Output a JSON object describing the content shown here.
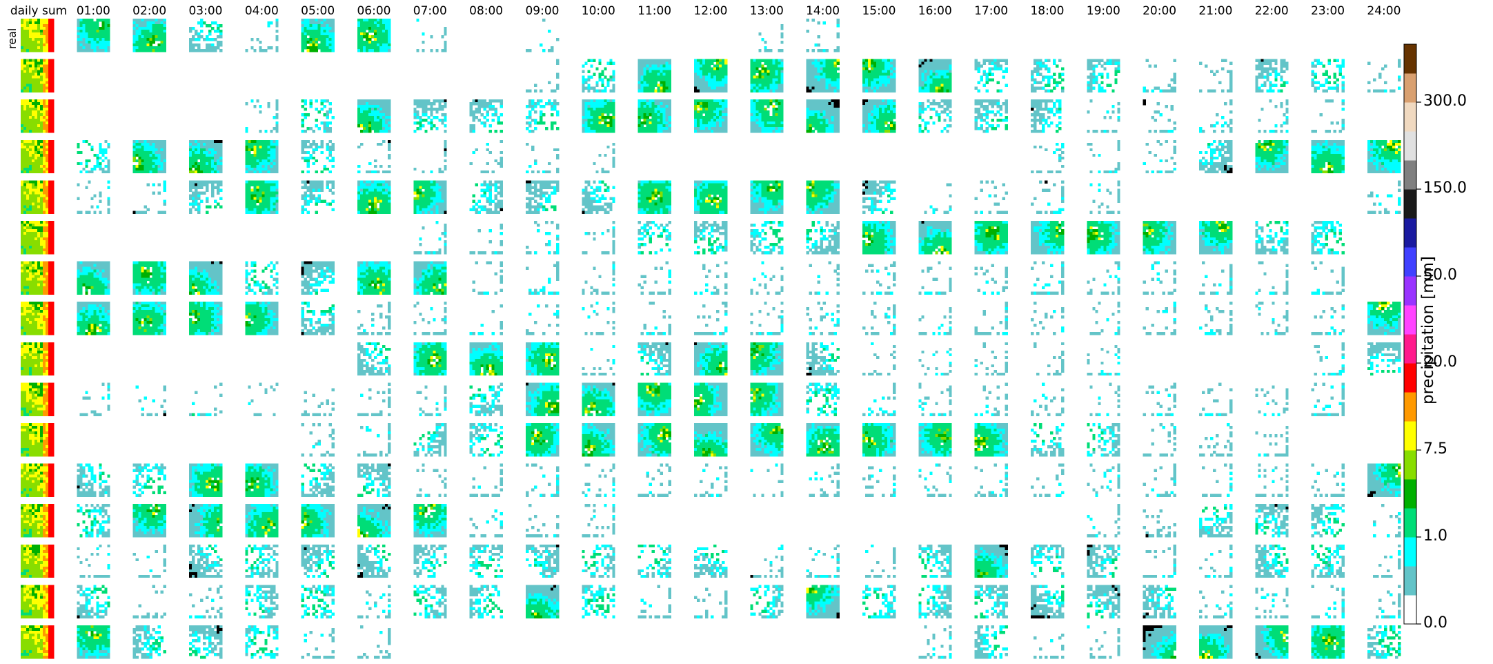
{
  "chart_data": {
    "type": "heatmap",
    "title": "",
    "columns": [
      "daily sum",
      "01:00",
      "02:00",
      "03:00",
      "04:00",
      "05:00",
      "06:00",
      "07:00",
      "08:00",
      "09:00",
      "10:00",
      "11:00",
      "12:00",
      "13:00",
      "14:00",
      "15:00",
      "16:00",
      "17:00",
      "18:00",
      "19:00",
      "20:00",
      "21:00",
      "22:00",
      "23:00",
      "24:00"
    ],
    "row_labels": [
      "real"
    ],
    "n_rows": 16,
    "colorbar": {
      "label": "precipitation [mm]",
      "tick_labels": [
        "0.0",
        "1.0",
        "7.5",
        "20.0",
        "50.0",
        "150.0",
        "300.0"
      ],
      "tick_bins": [
        0,
        3,
        6,
        9,
        12,
        15,
        18
      ],
      "colors": [
        "#ffffff",
        "#63c4c8",
        "#00ffff",
        "#00dd77",
        "#00b000",
        "#88dd00",
        "#ffff00",
        "#ff9900",
        "#ff0000",
        "#ff1a8c",
        "#ff44ff",
        "#9933ff",
        "#4040ff",
        "#1a1aa0",
        "#1a1a1a",
        "#808080",
        "#e0e0e0",
        "#f0d9c0",
        "#d9a070",
        "#663300"
      ]
    },
    "coverage_grid": [
      [
        4,
        3,
        3,
        2,
        1,
        3,
        3,
        1,
        0,
        1,
        0,
        0,
        0,
        1,
        1,
        0,
        0,
        0,
        0,
        0,
        0,
        0,
        0,
        0,
        0
      ],
      [
        4,
        0,
        0,
        0,
        0,
        0,
        0,
        0,
        0,
        1,
        2,
        3,
        3,
        3,
        3,
        3,
        3,
        2,
        2,
        2,
        1,
        1,
        2,
        2,
        1
      ],
      [
        4,
        0,
        0,
        0,
        1,
        2,
        3,
        2,
        2,
        2,
        3,
        3,
        3,
        3,
        3,
        3,
        2,
        2,
        2,
        1,
        1,
        1,
        1,
        1,
        0
      ],
      [
        4,
        2,
        3,
        3,
        3,
        2,
        1,
        1,
        1,
        1,
        1,
        0,
        0,
        0,
        0,
        0,
        0,
        0,
        1,
        1,
        1,
        2,
        3,
        3,
        3
      ],
      [
        4,
        1,
        1,
        2,
        3,
        2,
        3,
        3,
        2,
        2,
        2,
        3,
        3,
        3,
        3,
        2,
        1,
        1,
        1,
        1,
        0,
        0,
        0,
        0,
        1
      ],
      [
        4,
        0,
        0,
        0,
        0,
        0,
        0,
        1,
        1,
        1,
        1,
        2,
        2,
        2,
        2,
        3,
        3,
        3,
        3,
        3,
        3,
        3,
        2,
        2,
        0
      ],
      [
        4,
        3,
        3,
        3,
        2,
        2,
        3,
        3,
        1,
        1,
        1,
        1,
        1,
        1,
        1,
        1,
        1,
        1,
        1,
        1,
        1,
        1,
        1,
        1,
        0
      ],
      [
        4,
        3,
        3,
        3,
        3,
        2,
        1,
        1,
        1,
        1,
        1,
        1,
        1,
        1,
        1,
        1,
        1,
        1,
        1,
        1,
        1,
        1,
        1,
        1,
        3
      ],
      [
        4,
        0,
        0,
        0,
        0,
        0,
        2,
        3,
        3,
        3,
        1,
        2,
        3,
        3,
        2,
        1,
        1,
        1,
        1,
        1,
        0,
        0,
        0,
        1,
        2
      ],
      [
        4,
        1,
        1,
        1,
        1,
        1,
        1,
        1,
        2,
        3,
        3,
        3,
        3,
        3,
        2,
        1,
        1,
        1,
        1,
        1,
        1,
        1,
        1,
        1,
        0
      ],
      [
        4,
        0,
        0,
        0,
        0,
        1,
        1,
        2,
        2,
        3,
        3,
        3,
        3,
        3,
        3,
        3,
        3,
        3,
        2,
        2,
        1,
        1,
        1,
        0,
        0
      ],
      [
        4,
        2,
        2,
        3,
        3,
        2,
        2,
        1,
        1,
        1,
        1,
        1,
        1,
        1,
        1,
        1,
        1,
        1,
        1,
        1,
        1,
        1,
        1,
        1,
        3
      ],
      [
        4,
        2,
        3,
        3,
        3,
        3,
        3,
        3,
        1,
        1,
        1,
        0,
        0,
        0,
        0,
        0,
        0,
        0,
        0,
        1,
        1,
        2,
        2,
        2,
        1
      ],
      [
        4,
        1,
        1,
        2,
        2,
        2,
        2,
        2,
        2,
        2,
        2,
        2,
        2,
        1,
        1,
        1,
        2,
        3,
        2,
        2,
        1,
        1,
        2,
        2,
        1
      ],
      [
        4,
        2,
        1,
        1,
        2,
        2,
        1,
        2,
        2,
        3,
        2,
        1,
        1,
        2,
        3,
        2,
        2,
        2,
        2,
        2,
        2,
        1,
        1,
        1,
        1
      ],
      [
        4,
        3,
        2,
        2,
        2,
        1,
        1,
        0,
        0,
        0,
        0,
        0,
        0,
        0,
        0,
        0,
        1,
        2,
        1,
        1,
        3,
        3,
        3,
        3,
        2
      ]
    ]
  }
}
